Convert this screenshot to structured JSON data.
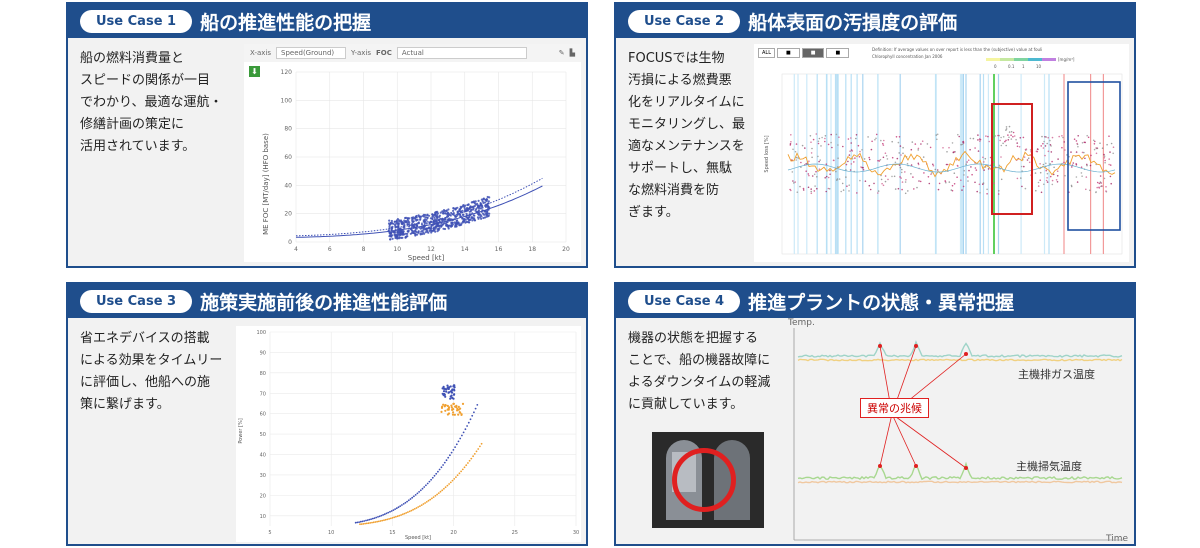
{
  "cards": [
    {
      "pill": "Use Case 1",
      "title": "船の推進性能の把握",
      "desc": "船の燃料消費量と\nスピードの関係が一目\nでわかり、最適な運航・\n修繕計画の策定に\n活用されています。"
    },
    {
      "pill": "Use Case 2",
      "title": "船体表面の汚損度の評価",
      "desc": "FOCUSでは生物\n汚損による燃費悪\n化をリアルタイムに\nモニタリングし、最\n適なメンテナンスを\nサポートし、無駄\nな燃料消費を防\nぎます。"
    },
    {
      "pill": "Use Case 3",
      "title": "施策実施前後の推進性能評価",
      "desc": "省エネデバイスの搭載\nによる効果をタイムリー\nに評価し、他船への施\n策に繋げます。"
    },
    {
      "pill": "Use Case 4",
      "title": "推進プラントの状態・異常把握",
      "desc": "機器の状態を把握する\nことで、船の機器故障に\nよるダウンタイムの軽減\nに貢献しています。"
    }
  ],
  "uc1": {
    "xaxis_label": "X-axis",
    "xaxis_value": "Speed(Ground)",
    "yaxis_label": "Y-axis",
    "yaxis_value": "FOC",
    "series_value": "Actual",
    "ylabel": "ME FOC [MT/day] (HFO base)",
    "xlabel": "Speed [kt]",
    "xticks": [
      "4",
      "6",
      "8",
      "10",
      "12",
      "14",
      "16",
      "18",
      "20"
    ],
    "yticks": [
      "120",
      "100",
      "80",
      "60",
      "40",
      "20",
      "0"
    ]
  },
  "uc2": {
    "ylabel": "Speed loss [%]",
    "legend_note": "Definition: If average values on over report is less than the (subjective) value at fouling?",
    "legend_note2": "Chlorophyll concentration Jan 2006",
    "legend_ticks": [
      "0",
      "0.1",
      "1",
      "10"
    ],
    "legend_unit": "[mg/m³]"
  },
  "uc3": {
    "ylabel": "Power [%]",
    "xlabel": "Speed [kt]",
    "xticks": [
      "5",
      "10",
      "15",
      "20",
      "25",
      "30"
    ],
    "yticks": [
      "100",
      "90",
      "80",
      "70",
      "60",
      "50",
      "40",
      "30",
      "20",
      "10"
    ]
  },
  "uc4": {
    "temp_label": "Temp.",
    "time_label": "Time",
    "exhaust_label": "主機排ガス温度",
    "scav_label": "主機掃気温度",
    "anomaly_label": "異常の兆候"
  },
  "colors": {
    "brand": "#1f4e8c",
    "scatter": "#3f51b5",
    "orange": "#f0a030",
    "red": "#e02020"
  }
}
